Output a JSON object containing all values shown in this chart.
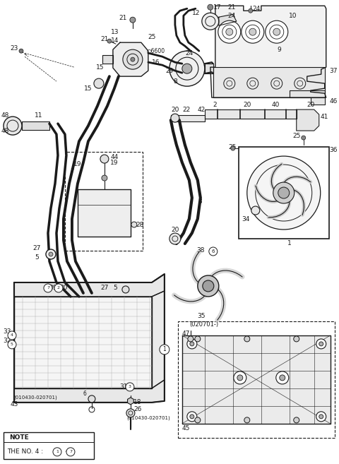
{
  "bg_color": "#ffffff",
  "line_color": "#1a1a1a",
  "fig_width": 4.8,
  "fig_height": 6.57,
  "dpi": 100
}
